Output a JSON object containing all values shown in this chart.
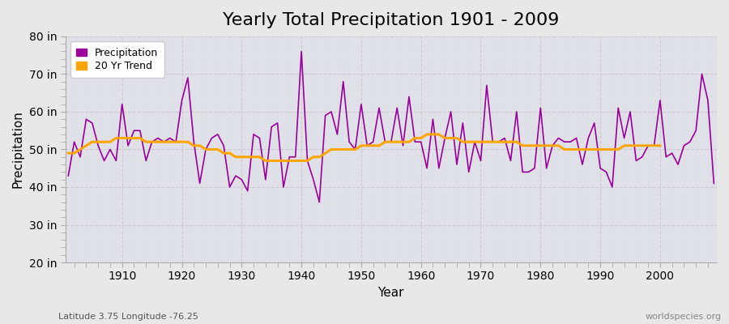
{
  "title": "Yearly Total Precipitation 1901 - 2009",
  "xlabel": "Year",
  "ylabel": "Precipitation",
  "subtitle": "Latitude 3.75 Longitude -76.25",
  "watermark": "worldspecies.org",
  "years": [
    1901,
    1902,
    1903,
    1904,
    1905,
    1906,
    1907,
    1908,
    1909,
    1910,
    1911,
    1912,
    1913,
    1914,
    1915,
    1916,
    1917,
    1918,
    1919,
    1920,
    1921,
    1922,
    1923,
    1924,
    1925,
    1926,
    1927,
    1928,
    1929,
    1930,
    1931,
    1932,
    1933,
    1934,
    1935,
    1936,
    1937,
    1938,
    1939,
    1940,
    1941,
    1942,
    1943,
    1944,
    1945,
    1946,
    1947,
    1948,
    1949,
    1950,
    1951,
    1952,
    1953,
    1954,
    1955,
    1956,
    1957,
    1958,
    1959,
    1960,
    1961,
    1962,
    1963,
    1964,
    1965,
    1966,
    1967,
    1968,
    1969,
    1970,
    1971,
    1972,
    1973,
    1974,
    1975,
    1976,
    1977,
    1978,
    1979,
    1980,
    1981,
    1982,
    1983,
    1984,
    1985,
    1986,
    1987,
    1988,
    1989,
    1990,
    1991,
    1992,
    1993,
    1994,
    1995,
    1996,
    1997,
    1998,
    1999,
    2000,
    2001,
    2002,
    2003,
    2004,
    2005,
    2006,
    2007,
    2008,
    2009
  ],
  "precip": [
    43,
    52,
    48,
    58,
    57,
    51,
    47,
    50,
    47,
    62,
    51,
    55,
    55,
    47,
    52,
    53,
    52,
    53,
    52,
    63,
    69,
    52,
    41,
    50,
    53,
    54,
    51,
    40,
    43,
    42,
    39,
    54,
    53,
    42,
    56,
    57,
    40,
    48,
    48,
    76,
    47,
    42,
    36,
    59,
    60,
    54,
    68,
    52,
    50,
    62,
    51,
    52,
    61,
    52,
    52,
    61,
    51,
    64,
    52,
    52,
    45,
    58,
    45,
    53,
    60,
    46,
    57,
    44,
    52,
    47,
    67,
    52,
    52,
    53,
    47,
    60,
    44,
    44,
    45,
    61,
    45,
    51,
    53,
    52,
    52,
    53,
    46,
    53,
    57,
    45,
    44,
    40,
    61,
    53,
    60,
    47,
    48,
    51,
    51,
    63,
    48,
    49,
    46,
    51,
    52,
    55,
    70,
    63,
    41
  ],
  "trend": [
    49,
    49,
    50,
    51,
    52,
    52,
    52,
    52,
    53,
    53,
    53,
    53,
    53,
    52,
    52,
    52,
    52,
    52,
    52,
    52,
    52,
    51,
    51,
    50,
    50,
    50,
    49,
    49,
    48,
    48,
    48,
    48,
    48,
    47,
    47,
    47,
    47,
    47,
    47,
    47,
    47,
    48,
    48,
    49,
    50,
    50,
    50,
    50,
    50,
    51,
    51,
    51,
    51,
    52,
    52,
    52,
    52,
    52,
    53,
    53,
    54,
    54,
    54,
    53,
    53,
    53,
    52,
    52,
    52,
    52,
    52,
    52,
    52,
    52,
    52,
    52,
    51,
    51,
    51,
    51,
    51,
    51,
    51,
    50,
    50,
    50,
    50,
    50,
    50,
    50,
    50,
    50,
    50,
    51,
    51,
    51,
    51,
    51,
    51,
    51
  ],
  "precip_color": "#990099",
  "trend_color": "#FFA500",
  "bg_color": "#e8e8e8",
  "plot_bg_color": "#e0e0e8",
  "major_grid_color": "#cccccc",
  "minor_grid_color": "#d8d8e0",
  "ylim": [
    20,
    80
  ],
  "yticks": [
    20,
    30,
    40,
    50,
    60,
    70,
    80
  ],
  "ytick_labels": [
    "20 in",
    "30 in",
    "40 in",
    "50 in",
    "60 in",
    "70 in",
    "80 in"
  ],
  "xticks": [
    1910,
    1920,
    1930,
    1940,
    1950,
    1960,
    1970,
    1980,
    1990,
    2000
  ],
  "title_fontsize": 16,
  "axis_label_fontsize": 11,
  "tick_fontsize": 10,
  "legend_fontsize": 9
}
